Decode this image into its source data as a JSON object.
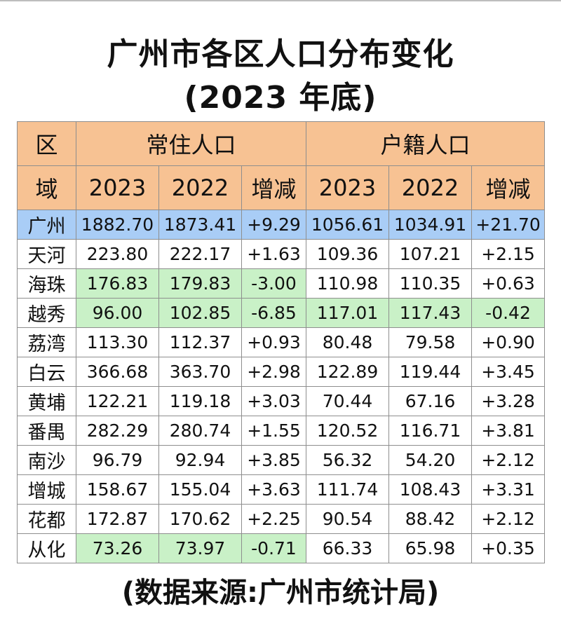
{
  "title_line1": "广州市各区人口分布变化",
  "title_line2": "(2023 年底)",
  "source": "(数据来源:广州市统计局)",
  "header": {
    "district_top": "区",
    "district_bottom": "域",
    "resident": "常住人口",
    "registered": "户籍人口",
    "y2023": "2023",
    "y2022": "2022",
    "change": "增减"
  },
  "colors": {
    "header": "#f7c293",
    "total_row": "#a9cdf6",
    "highlight": "#c9f1c7"
  },
  "rows": [
    {
      "name": "广州",
      "r2023": "1882.70",
      "r2022": "1873.41",
      "rchg": "+9.29",
      "h2023": "1056.61",
      "h2022": "1034.91",
      "hchg": "+21.70"
    },
    {
      "name": "天河",
      "r2023": "223.80",
      "r2022": "222.17",
      "rchg": "+1.63",
      "h2023": "109.36",
      "h2022": "107.21",
      "hchg": "+2.15"
    },
    {
      "name": "海珠",
      "r2023": "176.83",
      "r2022": "179.83",
      "rchg": "-3.00",
      "h2023": "110.98",
      "h2022": "110.35",
      "hchg": "+0.63"
    },
    {
      "name": "越秀",
      "r2023": "96.00",
      "r2022": "102.85",
      "rchg": "-6.85",
      "h2023": "117.01",
      "h2022": "117.43",
      "hchg": "-0.42"
    },
    {
      "name": "荔湾",
      "r2023": "113.30",
      "r2022": "112.37",
      "rchg": "+0.93",
      "h2023": "80.48",
      "h2022": "79.58",
      "hchg": "+0.90"
    },
    {
      "name": "白云",
      "r2023": "366.68",
      "r2022": "363.70",
      "rchg": "+2.98",
      "h2023": "122.89",
      "h2022": "119.44",
      "hchg": "+3.45"
    },
    {
      "name": "黄埔",
      "r2023": "122.21",
      "r2022": "119.18",
      "rchg": "+3.03",
      "h2023": "70.44",
      "h2022": "67.16",
      "hchg": "+3.28"
    },
    {
      "name": "番禺",
      "r2023": "282.29",
      "r2022": "280.74",
      "rchg": "+1.55",
      "h2023": "120.52",
      "h2022": "116.71",
      "hchg": "+3.81"
    },
    {
      "name": "南沙",
      "r2023": "96.79",
      "r2022": "92.94",
      "rchg": "+3.85",
      "h2023": "56.32",
      "h2022": "54.20",
      "hchg": "+2.12"
    },
    {
      "name": "增城",
      "r2023": "158.67",
      "r2022": "155.04",
      "rchg": "+3.63",
      "h2023": "111.74",
      "h2022": "108.43",
      "hchg": "+3.31"
    },
    {
      "name": "花都",
      "r2023": "172.87",
      "r2022": "170.62",
      "rchg": "+2.25",
      "h2023": "90.54",
      "h2022": "88.42",
      "hchg": "+2.12"
    },
    {
      "name": "从化",
      "r2023": "73.26",
      "r2022": "73.97",
      "rchg": "-0.71",
      "h2023": "66.33",
      "h2022": "65.98",
      "hchg": "+0.35"
    }
  ]
}
